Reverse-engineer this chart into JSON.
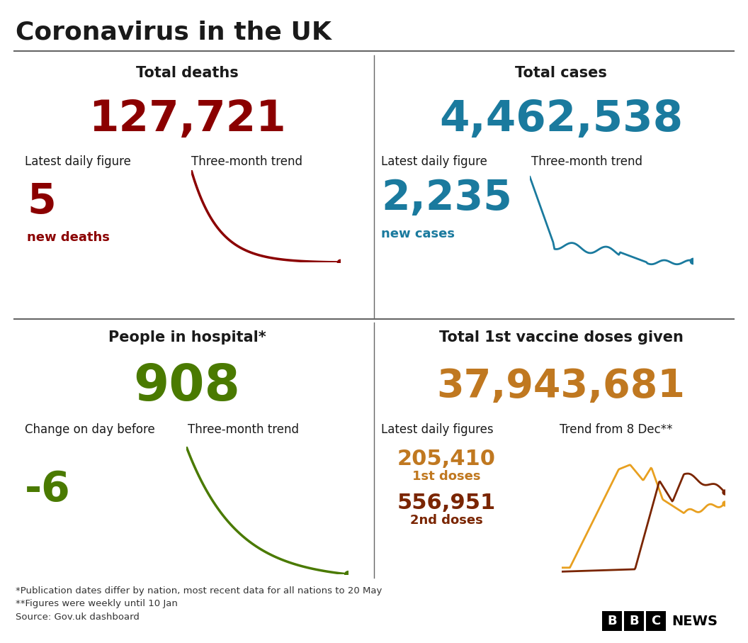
{
  "title": "Coronavirus in the UK",
  "bg_color": "#ffffff",
  "title_color": "#1a1a1a",
  "divider_color": "#666666",
  "deaths_label": "Total deaths",
  "deaths_total": "127,721",
  "deaths_total_color": "#8b0000",
  "deaths_daily_label": "Latest daily figure",
  "deaths_trend_label": "Three-month trend",
  "deaths_daily_value": "5",
  "deaths_daily_subtext": "new deaths",
  "deaths_daily_color": "#8b0000",
  "deaths_line_color": "#8b0000",
  "cases_label": "Total cases",
  "cases_total": "4,462,538",
  "cases_total_color": "#1a7a9e",
  "cases_daily_label": "Latest daily figure",
  "cases_trend_label": "Three-month trend",
  "cases_daily_value": "2,235",
  "cases_daily_subtext": "new cases",
  "cases_daily_color": "#1a7a9e",
  "cases_line_color": "#1a7a9e",
  "hospital_label": "People in hospital*",
  "hospital_total": "908",
  "hospital_total_color": "#4a7a00",
  "hospital_change_label": "Change on day before",
  "hospital_trend_label": "Three-month trend",
  "hospital_change_value": "-6",
  "hospital_change_color": "#4a7a00",
  "hospital_line_color": "#4a7a00",
  "vaccine_label": "Total 1st vaccine doses given",
  "vaccine_total": "37,943,681",
  "vaccine_total_color": "#c07820",
  "vaccine_daily_label": "Latest daily figures",
  "vaccine_trend_label": "Trend from 8 Dec**",
  "vaccine_dose1_value": "205,410",
  "vaccine_dose1_subtext": "1st doses",
  "vaccine_dose1_color": "#c07820",
  "vaccine_dose2_value": "556,951",
  "vaccine_dose2_subtext": "2nd doses",
  "vaccine_dose2_color": "#7a2500",
  "footnote1": "*Publication dates differ by nation, most recent data for all nations to 20 May",
  "footnote2": "**Figures were weekly until 10 Jan",
  "footnote3": "Source: Gov.uk dashboard",
  "footnote_color": "#333333"
}
